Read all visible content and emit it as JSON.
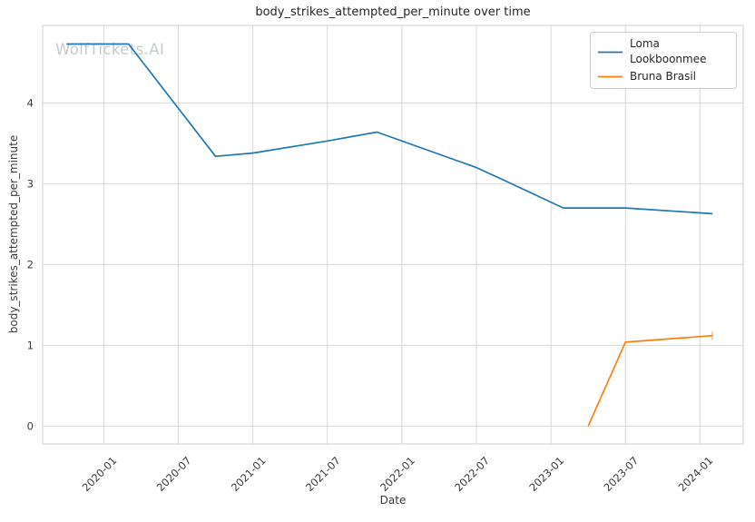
{
  "watermark": "WolfTickets.AI",
  "chart_data": {
    "type": "line",
    "title": "body_strikes_attempted_per_minute over time",
    "xlabel": "Date",
    "ylabel": "body_strikes_attempted_per_minute",
    "grid": true,
    "legend_position": "upper right",
    "x_tick_labels": [
      "2020-01",
      "2020-07",
      "2021-01",
      "2021-07",
      "2022-01",
      "2022-07",
      "2023-01",
      "2023-07",
      "2024-01"
    ],
    "y_ticks": [
      0,
      1,
      2,
      3,
      4
    ],
    "x_range_years": [
      2019.59,
      2024.29
    ],
    "y_range": [
      -0.22,
      4.96
    ],
    "series": [
      {
        "name": "Loma Lookboonmee",
        "color": "#1f77b4",
        "points": [
          {
            "date": "2019-10",
            "value": 4.73
          },
          {
            "date": "2020-03",
            "value": 4.73
          },
          {
            "date": "2020-10",
            "value": 3.34
          },
          {
            "date": "2021-01",
            "value": 3.38
          },
          {
            "date": "2021-07",
            "value": 3.53
          },
          {
            "date": "2021-11",
            "value": 3.64
          },
          {
            "date": "2022-07",
            "value": 3.2
          },
          {
            "date": "2022-09",
            "value": 3.06
          },
          {
            "date": "2023-02",
            "value": 2.7
          },
          {
            "date": "2023-07",
            "value": 2.7
          },
          {
            "date": "2024-02",
            "value": 2.63
          }
        ]
      },
      {
        "name": "Bruna Brasil",
        "color": "#ff7f0e",
        "end_cap": true,
        "points": [
          {
            "date": "2023-04",
            "value": 0.0
          },
          {
            "date": "2023-07",
            "value": 1.04
          },
          {
            "date": "2024-02",
            "value": 1.12
          }
        ]
      }
    ]
  }
}
